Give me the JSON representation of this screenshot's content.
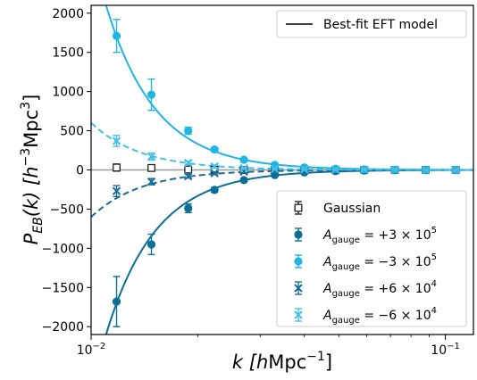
{
  "chart_data": {
    "type": "scatter",
    "xlabel_main": "k [",
    "xlabel_h": "h",
    "xlabel_unit": "Mpc",
    "xlabel_exp": "−1",
    "xlabel_close": "]",
    "ylabel_main": "P",
    "ylabel_sub": "EB",
    "ylabel_arg": "(k) [",
    "ylabel_h": "h",
    "ylabel_exp1": "−3",
    "ylabel_unit": "Mpc",
    "ylabel_exp2": "3",
    "ylabel_close": "]",
    "x_scale": "log",
    "xlim": [
      0.01,
      0.12
    ],
    "ylim": [
      -2100,
      2100
    ],
    "x_ticks": [
      {
        "value": 0.01,
        "base": "10",
        "exp": "−2"
      },
      {
        "value": 0.1,
        "base": "10",
        "exp": "−1"
      }
    ],
    "y_ticks": [
      -2000,
      -1500,
      -1000,
      -500,
      0,
      500,
      1000,
      1500,
      2000
    ],
    "y_tick_labels": [
      "−2000",
      "−1500",
      "−1000",
      "−500",
      "0",
      "500",
      "1000",
      "1500",
      "2000"
    ],
    "legend_top": {
      "position": "top-right",
      "label": "Best-fit EFT model"
    },
    "legend_bottom": {
      "position": "bottom-right",
      "entries": [
        {
          "key": "gaussian",
          "prefix": "",
          "text": "Gaussian"
        },
        {
          "key": "a1",
          "prefix": "A",
          "sub": "gauge",
          "eq": " = +3 × 10",
          "exp": "5"
        },
        {
          "key": "a2",
          "prefix": "A",
          "sub": "gauge",
          "eq": " = −3 × 10",
          "exp": "5"
        },
        {
          "key": "a3",
          "prefix": "A",
          "sub": "gauge",
          "eq": " = +6 × 10",
          "exp": "4"
        },
        {
          "key": "a4",
          "prefix": "A",
          "sub": "gauge",
          "eq": " = −6 × 10",
          "exp": "4"
        }
      ]
    },
    "series": [
      {
        "key": "gaussian",
        "marker": "open-square",
        "color": "#222222",
        "points": [
          {
            "x": 0.0118,
            "y": 30,
            "err": 45
          },
          {
            "x": 0.0148,
            "y": 25,
            "err": 30
          },
          {
            "x": 0.0188,
            "y": 5,
            "err": 25
          },
          {
            "x": 0.0223,
            "y": 5,
            "err": 20
          },
          {
            "x": 0.027,
            "y": 0,
            "err": 15
          },
          {
            "x": 0.033,
            "y": 0,
            "err": 12
          },
          {
            "x": 0.04,
            "y": 0,
            "err": 10
          },
          {
            "x": 0.049,
            "y": 0,
            "err": 8
          },
          {
            "x": 0.059,
            "y": 0,
            "err": 6
          },
          {
            "x": 0.072,
            "y": 0,
            "err": 5
          },
          {
            "x": 0.088,
            "y": 0,
            "err": 4
          },
          {
            "x": 0.107,
            "y": 0,
            "err": 3
          }
        ]
      },
      {
        "key": "a1",
        "marker": "circle",
        "color": "#0a6e96",
        "points": [
          {
            "x": 0.0118,
            "y": -1680,
            "err": 320
          },
          {
            "x": 0.0148,
            "y": -950,
            "err": 130
          },
          {
            "x": 0.0188,
            "y": -490,
            "err": 55
          },
          {
            "x": 0.0223,
            "y": -255,
            "err": 30
          },
          {
            "x": 0.027,
            "y": -130,
            "err": 18
          },
          {
            "x": 0.033,
            "y": -65,
            "err": 12
          },
          {
            "x": 0.04,
            "y": -32,
            "err": 8
          },
          {
            "x": 0.049,
            "y": -15,
            "err": 6
          },
          {
            "x": 0.059,
            "y": -7,
            "err": 5
          },
          {
            "x": 0.072,
            "y": -3,
            "err": 4
          },
          {
            "x": 0.088,
            "y": -1,
            "err": 3
          },
          {
            "x": 0.107,
            "y": 0,
            "err": 3
          }
        ]
      },
      {
        "key": "a2",
        "marker": "circle",
        "color": "#1fb5e6",
        "points": [
          {
            "x": 0.0118,
            "y": 1710,
            "err": 210
          },
          {
            "x": 0.0148,
            "y": 960,
            "err": 200
          },
          {
            "x": 0.0188,
            "y": 500,
            "err": 45
          },
          {
            "x": 0.0223,
            "y": 260,
            "err": 25
          },
          {
            "x": 0.027,
            "y": 130,
            "err": 18
          },
          {
            "x": 0.033,
            "y": 65,
            "err": 12
          },
          {
            "x": 0.04,
            "y": 32,
            "err": 8
          },
          {
            "x": 0.049,
            "y": 15,
            "err": 6
          },
          {
            "x": 0.059,
            "y": 7,
            "err": 5
          },
          {
            "x": 0.072,
            "y": 3,
            "err": 4
          },
          {
            "x": 0.088,
            "y": 1,
            "err": 3
          },
          {
            "x": 0.107,
            "y": 0,
            "err": 3
          }
        ]
      },
      {
        "key": "a3",
        "marker": "x",
        "color": "#1a6d99",
        "points": [
          {
            "x": 0.0118,
            "y": -270,
            "err": 70
          },
          {
            "x": 0.0148,
            "y": -150,
            "err": 40
          },
          {
            "x": 0.0188,
            "y": -80,
            "err": 25
          },
          {
            "x": 0.0223,
            "y": -42,
            "err": 18
          },
          {
            "x": 0.027,
            "y": -22,
            "err": 14
          },
          {
            "x": 0.033,
            "y": -11,
            "err": 10
          },
          {
            "x": 0.04,
            "y": -6,
            "err": 8
          },
          {
            "x": 0.049,
            "y": -3,
            "err": 6
          },
          {
            "x": 0.059,
            "y": -2,
            "err": 5
          },
          {
            "x": 0.072,
            "y": -1,
            "err": 4
          },
          {
            "x": 0.088,
            "y": 0,
            "err": 3
          },
          {
            "x": 0.107,
            "y": 0,
            "err": 3
          }
        ]
      },
      {
        "key": "a4",
        "marker": "x",
        "color": "#46bfe8",
        "points": [
          {
            "x": 0.0118,
            "y": 370,
            "err": 70
          },
          {
            "x": 0.0148,
            "y": 170,
            "err": 45
          },
          {
            "x": 0.0188,
            "y": 90,
            "err": 25
          },
          {
            "x": 0.0223,
            "y": 45,
            "err": 18
          },
          {
            "x": 0.027,
            "y": 22,
            "err": 14
          },
          {
            "x": 0.033,
            "y": 11,
            "err": 10
          },
          {
            "x": 0.04,
            "y": 6,
            "err": 8
          },
          {
            "x": 0.049,
            "y": 3,
            "err": 6
          },
          {
            "x": 0.059,
            "y": 2,
            "err": 5
          },
          {
            "x": 0.072,
            "y": 1,
            "err": 4
          },
          {
            "x": 0.088,
            "y": 0,
            "err": 3
          },
          {
            "x": 0.107,
            "y": 0,
            "err": 3
          }
        ]
      }
    ],
    "model_curves": [
      {
        "key": "zero",
        "style": "solid",
        "color": "#9a9a9a",
        "amplitude": 0,
        "slope": 0
      },
      {
        "key": "a1",
        "style": "solid",
        "color": "#0a6e96",
        "amplitude": -1700,
        "slope": 3.1
      },
      {
        "key": "a2",
        "style": "solid",
        "color": "#1fb5e6",
        "amplitude": 1700,
        "slope": 3.1
      },
      {
        "key": "a3",
        "style": "dashed",
        "color": "#1a6d99",
        "amplitude": -360,
        "slope": 3.1
      },
      {
        "key": "a4",
        "style": "dashed",
        "color": "#46bfe8",
        "amplitude": 360,
        "slope": 3.1
      }
    ],
    "model_pivot_k": 0.0118
  }
}
